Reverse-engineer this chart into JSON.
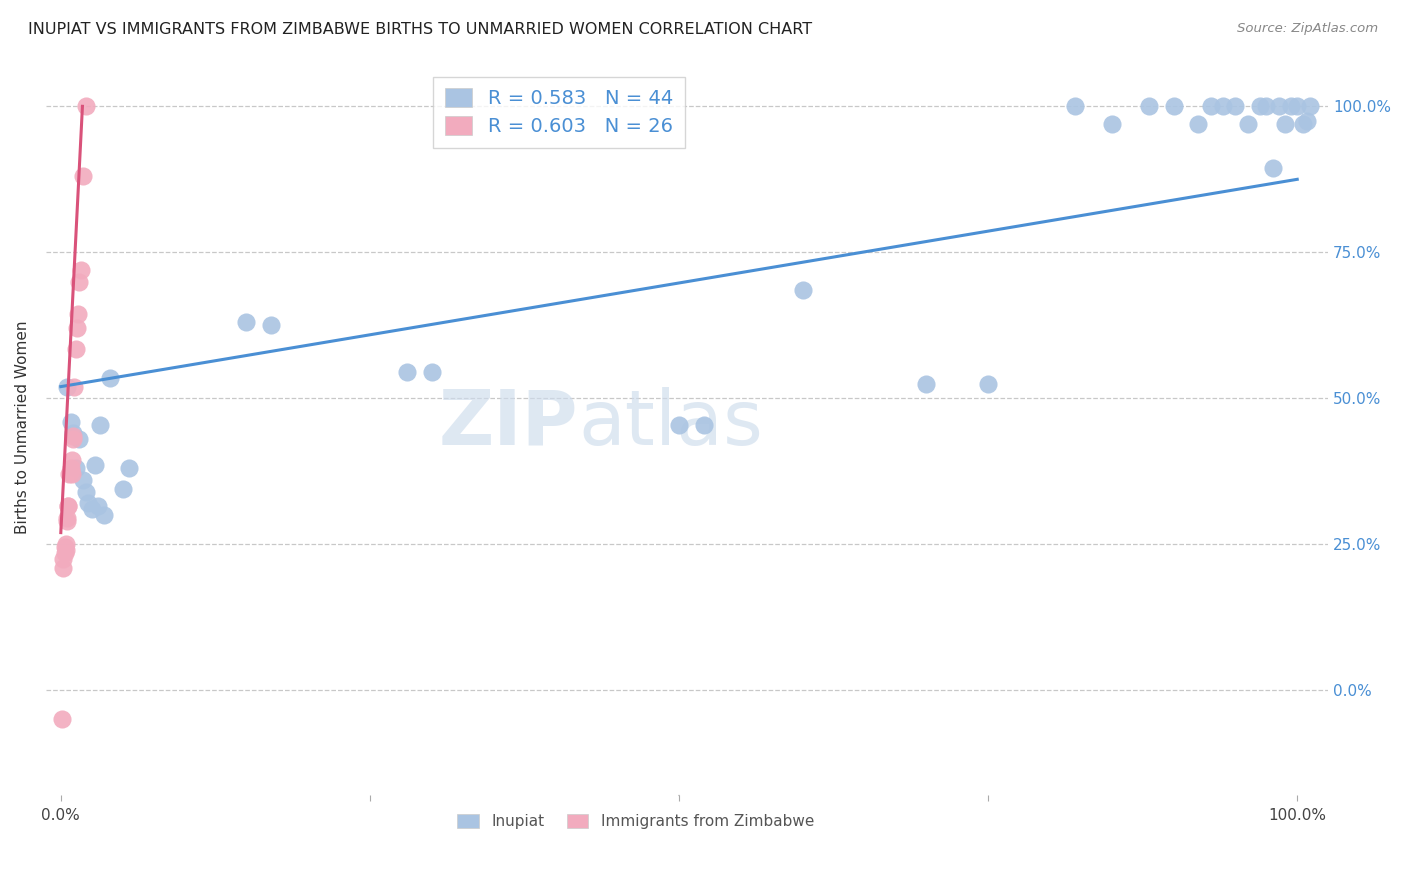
{
  "title": "INUPIAT VS IMMIGRANTS FROM ZIMBABWE BIRTHS TO UNMARRIED WOMEN CORRELATION CHART",
  "source": "Source: ZipAtlas.com",
  "ylabel": "Births to Unmarried Women",
  "watermark_bold": "ZIP",
  "watermark_light": "atlas",
  "blue_color": "#aac4e2",
  "pink_color": "#f2abbe",
  "blue_line_color": "#4a8fd4",
  "pink_line_color": "#d9527a",
  "legend_blue_label": "R = 0.583   N = 44",
  "legend_pink_label": "R = 0.603   N = 26",
  "legend_text_color": "#4a8fd4",
  "grid_color": "#c8c8c8",
  "right_tick_color": "#4a8fd4",
  "ylim_min": -0.18,
  "ylim_max": 1.08,
  "xlim_min": -0.012,
  "xlim_max": 1.025,
  "inupiat_x": [
    0.005,
    0.008,
    0.01,
    0.012,
    0.015,
    0.018,
    0.02,
    0.022,
    0.025,
    0.028,
    0.03,
    0.032,
    0.035,
    0.04,
    0.05,
    0.055,
    0.15,
    0.17,
    0.28,
    0.3,
    0.5,
    0.52,
    0.6,
    0.7,
    0.75,
    0.82,
    0.85,
    0.88,
    0.9,
    0.92,
    0.93,
    0.94,
    0.95,
    0.96,
    0.97,
    0.975,
    0.98,
    0.985,
    0.99,
    0.995,
    1.0,
    1.005,
    1.008,
    1.01
  ],
  "inupiat_y": [
    0.52,
    0.46,
    0.44,
    0.38,
    0.43,
    0.36,
    0.34,
    0.32,
    0.31,
    0.385,
    0.315,
    0.455,
    0.3,
    0.535,
    0.345,
    0.38,
    0.63,
    0.625,
    0.545,
    0.545,
    0.455,
    0.455,
    0.685,
    0.525,
    0.525,
    1.0,
    0.97,
    1.0,
    1.0,
    0.97,
    1.0,
    1.0,
    1.0,
    0.97,
    1.0,
    1.0,
    0.895,
    1.0,
    0.97,
    1.0,
    1.0,
    0.97,
    0.975,
    1.0
  ],
  "zimbabwe_x": [
    0.001,
    0.002,
    0.002,
    0.003,
    0.003,
    0.004,
    0.004,
    0.005,
    0.005,
    0.006,
    0.006,
    0.007,
    0.008,
    0.008,
    0.009,
    0.009,
    0.01,
    0.01,
    0.011,
    0.012,
    0.013,
    0.014,
    0.015,
    0.016,
    0.018,
    0.02
  ],
  "zimbabwe_y": [
    -0.05,
    0.21,
    0.225,
    0.235,
    0.245,
    0.24,
    0.25,
    0.29,
    0.295,
    0.315,
    0.315,
    0.37,
    0.375,
    0.38,
    0.37,
    0.395,
    0.43,
    0.435,
    0.52,
    0.585,
    0.62,
    0.645,
    0.7,
    0.72,
    0.88,
    1.0
  ],
  "blue_line_x": [
    0.0,
    1.0
  ],
  "blue_line_y": [
    0.52,
    0.875
  ],
  "pink_line_x": [
    0.0,
    0.0175
  ],
  "pink_line_y": [
    0.27,
    1.0
  ]
}
